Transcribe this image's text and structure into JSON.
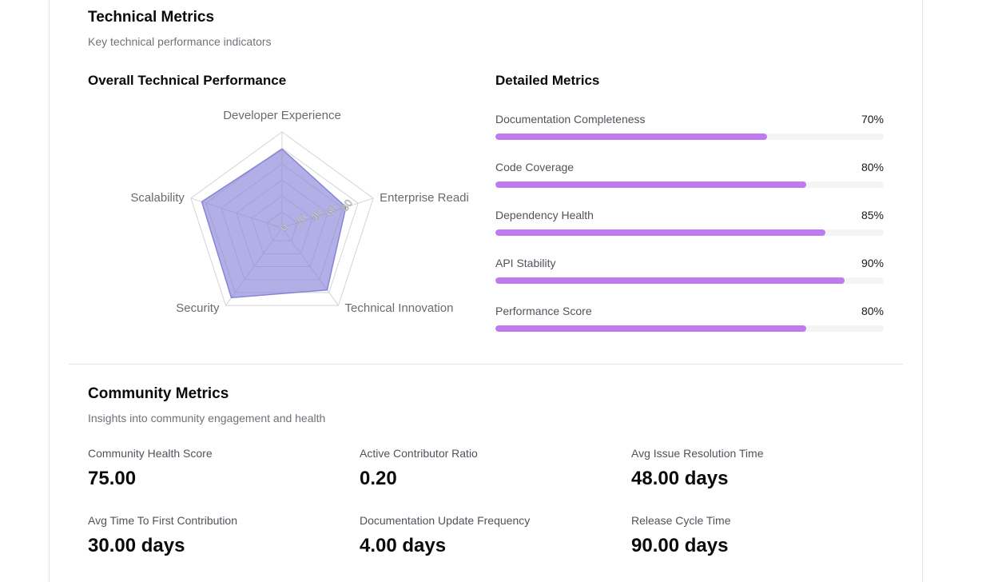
{
  "technical": {
    "title": "Technical Metrics",
    "subtitle": "Key technical performance indicators",
    "radar_title": "Overall Technical Performance",
    "detailed_title": "Detailed Metrics",
    "radar": {
      "axes": [
        "Developer Experience",
        "Enterprise Readi",
        "Technical Innovation",
        "Security",
        "Scalability"
      ],
      "values": [
        82,
        70,
        80,
        90,
        88
      ],
      "max": 100,
      "ticks": [
        "0",
        "20",
        "40",
        "60",
        "80"
      ],
      "fill_color": "#8884d8"
    },
    "metrics": [
      {
        "name": "Documentation Completeness",
        "pct": "70%",
        "value": 70
      },
      {
        "name": "Code Coverage",
        "pct": "80%",
        "value": 80
      },
      {
        "name": "Dependency Health",
        "pct": "85%",
        "value": 85
      },
      {
        "name": "API Stability",
        "pct": "90%",
        "value": 90
      },
      {
        "name": "Performance Score",
        "pct": "80%",
        "value": 80
      }
    ],
    "bar_color": "#bf7af0"
  },
  "community": {
    "title": "Community Metrics",
    "subtitle": "Insights into community engagement and health",
    "items": [
      {
        "label": "Community Health Score",
        "value": "75.00"
      },
      {
        "label": "Active Contributor Ratio",
        "value": "0.20"
      },
      {
        "label": "Avg Issue Resolution Time",
        "value": "48.00 days"
      },
      {
        "label": "Avg Time To First Contribution",
        "value": "30.00 days"
      },
      {
        "label": "Documentation Update Frequency",
        "value": "4.00 days"
      },
      {
        "label": "Release Cycle Time",
        "value": "90.00 days"
      }
    ]
  }
}
